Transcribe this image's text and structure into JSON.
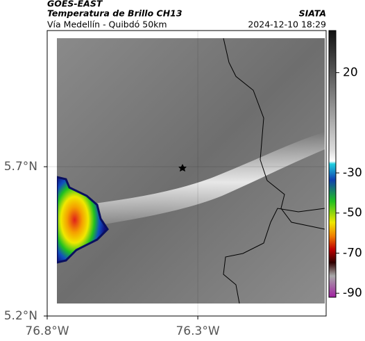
{
  "header": {
    "source": "GOES-EAST",
    "title": "Temperatura de Brillo CH13",
    "subtitle": "Vía Medellín - Quibdó 50km",
    "organization": "SIATA",
    "datetime": "2024-12-10 18:29"
  },
  "map": {
    "xlim": [
      -76.8,
      -75.874
    ],
    "ylim": [
      5.2,
      6.156
    ],
    "xticks": [
      {
        "value": -76.8,
        "label": "76.8°W"
      },
      {
        "value": -76.3,
        "label": "76.3°W"
      }
    ],
    "yticks": [
      {
        "value": 5.7,
        "label": "5.7°N"
      },
      {
        "value": 5.2,
        "label": "5.2°N"
      }
    ]
  },
  "colorbar": {
    "lim": [
      -92,
      41
    ],
    "ticks": [
      20,
      -30,
      -50,
      -70,
      -90
    ]
  }
}
